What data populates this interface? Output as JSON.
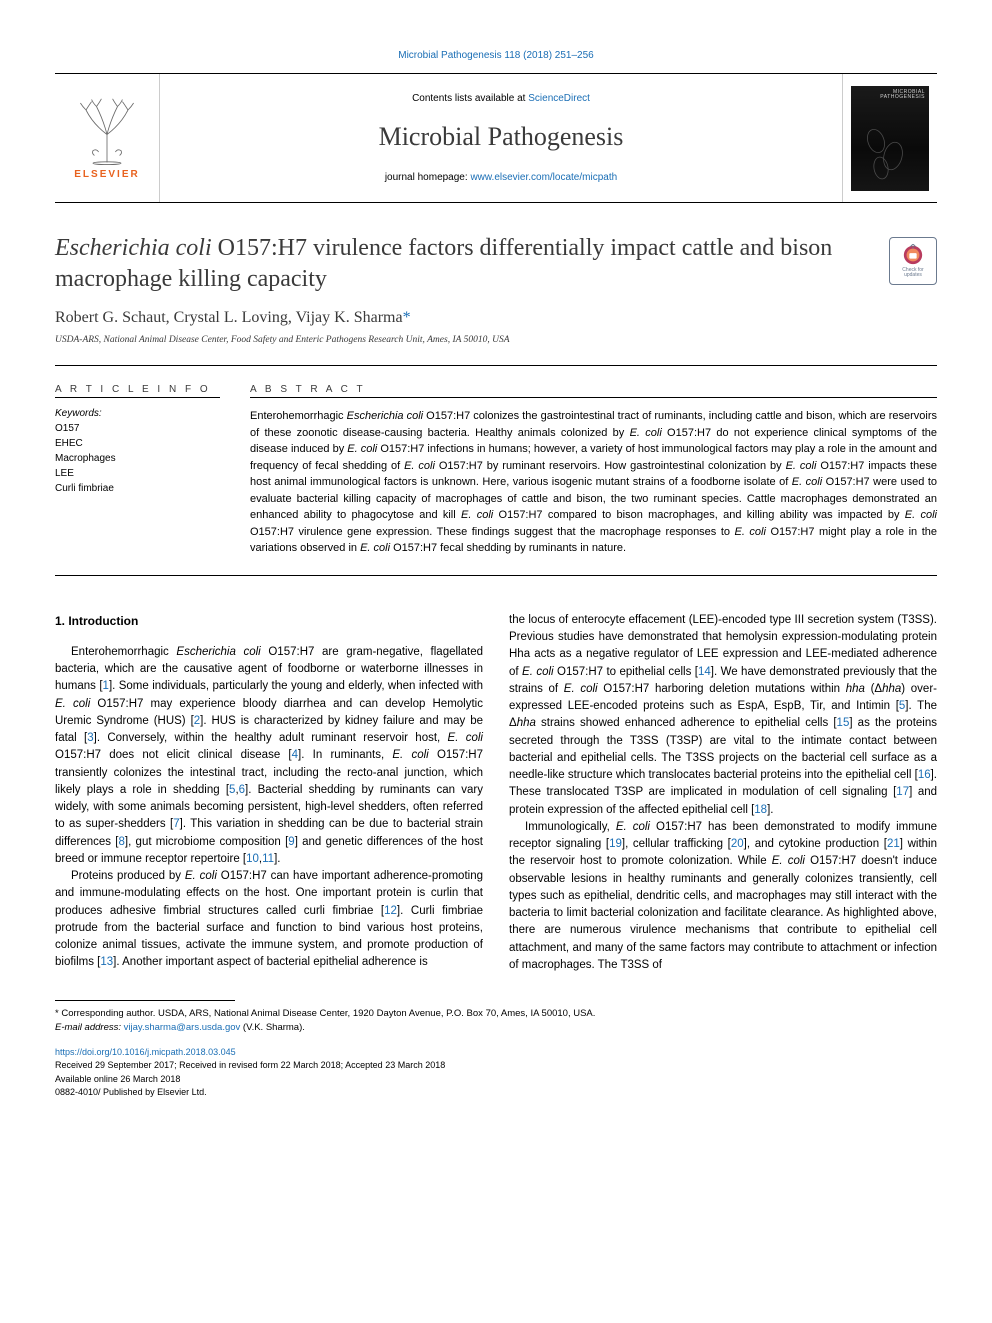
{
  "top_journal_link": "Microbial Pathogenesis 118 (2018) 251–256",
  "banner": {
    "contents_prefix": "Contents lists available at ",
    "contents_link": "ScienceDirect",
    "journal_name": "Microbial Pathogenesis",
    "homepage_prefix": "journal homepage: ",
    "homepage_url": "www.elsevier.com/locate/micpath",
    "elsevier_label": "ELSEVIER",
    "cover_title_1": "MICROBIAL",
    "cover_title_2": "PATHOGENESIS"
  },
  "colors": {
    "link": "#1a6eb5",
    "elsevier_orange": "#e8621f",
    "text_dark": "#3a3a3a",
    "badge_border": "#6b7a8f",
    "cover_bg": "#1a1a1a"
  },
  "title": {
    "pre_italic": "",
    "italic": "Escherichia coli",
    "rest": " O157:H7 virulence factors differentially impact cattle and bison macrophage killing capacity"
  },
  "updates_badge": {
    "line1": "Check for",
    "line2": "updates"
  },
  "authors": "Robert G. Schaut, Crystal L. Loving, Vijay K. Sharma",
  "corr_marker": "*",
  "affiliation": "USDA-ARS, National Animal Disease Center, Food Safety and Enteric Pathogens Research Unit, Ames, IA 50010, USA",
  "info": {
    "heading": "A R T I C L E  I N F O",
    "keywords_label": "Keywords:",
    "keywords": [
      "O157",
      "EHEC",
      "Macrophages",
      "LEE",
      "Curli fimbriae"
    ]
  },
  "abstract": {
    "heading": "A B S T R A C T",
    "text_html": "Enterohemorrhagic <span class=\"italic\">Escherichia coli</span> O157:H7 colonizes the gastrointestinal tract of ruminants, including cattle and bison, which are reservoirs of these zoonotic disease-causing bacteria. Healthy animals colonized by <span class=\"italic\">E. coli</span> O157:H7 do not experience clinical symptoms of the disease induced by <span class=\"italic\">E. coli</span> O157:H7 infections in humans; however, a variety of host immunological factors may play a role in the amount and frequency of fecal shedding of <span class=\"italic\">E. coli</span> O157:H7 by ruminant reservoirs. How gastrointestinal colonization by <span class=\"italic\">E. coli</span> O157:H7 impacts these host animal immunological factors is unknown. Here, various isogenic mutant strains of a foodborne isolate of <span class=\"italic\">E. coli</span> O157:H7 were used to evaluate bacterial killing capacity of macrophages of cattle and bison, the two ruminant species. Cattle macrophages demonstrated an enhanced ability to phagocytose and kill <span class=\"italic\">E. coli</span> O157:H7 compared to bison macrophages, and killing ability was impacted by <span class=\"italic\">E. coli</span> O157:H7 virulence gene expression. These findings suggest that the macrophage responses to <span class=\"italic\">E. coli</span> O157:H7 might play a role in the variations observed in <span class=\"italic\">E. coli</span> O157:H7 fecal shedding by ruminants in nature."
  },
  "body": {
    "intro_heading": "1. Introduction",
    "col1_p1": "Enterohemorrhagic <span class=\"italic\">Escherichia coli</span> O157:H7 are gram-negative, flagellated bacteria, which are the causative agent of foodborne or waterborne illnesses in humans [<span class=\"cite\">1</span>]. Some individuals, particularly the young and elderly, when infected with <span class=\"italic\">E. coli</span> O157:H7 may experience bloody diarrhea and can develop Hemolytic Uremic Syndrome (HUS) [<span class=\"cite\">2</span>]. HUS is characterized by kidney failure and may be fatal [<span class=\"cite\">3</span>]. Conversely, within the healthy adult ruminant reservoir host, <span class=\"italic\">E. coli</span> O157:H7 does not elicit clinical disease [<span class=\"cite\">4</span>]. In ruminants, <span class=\"italic\">E. coli</span> O157:H7 transiently colonizes the intestinal tract, including the recto-anal junction, which likely plays a role in shedding [<span class=\"cite\">5</span>,<span class=\"cite\">6</span>]. Bacterial shedding by ruminants can vary widely, with some animals becoming persistent, high-level shedders, often referred to as super-shedders [<span class=\"cite\">7</span>]. This variation in shedding can be due to bacterial strain differences [<span class=\"cite\">8</span>], gut microbiome composition [<span class=\"cite\">9</span>] and genetic differences of the host breed or immune receptor repertoire [<span class=\"cite\">10</span>,<span class=\"cite\">11</span>].",
    "col1_p2": "Proteins produced by <span class=\"italic\">E. coli</span> O157:H7 can have important adherence-promoting and immune-modulating effects on the host. One important protein is curlin that produces adhesive fimbrial structures called curli fimbriae [<span class=\"cite\">12</span>]. Curli fimbriae protrude from the bacterial surface and function to bind various host proteins, colonize animal tissues, activate the immune system, and promote production of biofilms [<span class=\"cite\">13</span>]. Another important aspect of bacterial epithelial adherence is",
    "col2_p1": "the locus of enterocyte effacement (LEE)-encoded type III secretion system (T3SS). Previous studies have demonstrated that hemolysin expression-modulating protein Hha acts as a negative regulator of LEE expression and LEE-mediated adherence of <span class=\"italic\">E. coli</span> O157:H7 to epithelial cells [<span class=\"cite\">14</span>]. We have demonstrated previously that the strains of <span class=\"italic\">E. coli</span> O157:H7 harboring deletion mutations within <span class=\"italic\">hha</span> (Δ<span class=\"italic\">hha</span>) over-expressed LEE-encoded proteins such as EspA, EspB, Tir, and Intimin [<span class=\"cite\">5</span>]. The Δ<span class=\"italic\">hha</span> strains showed enhanced adherence to epithelial cells [<span class=\"cite\">15</span>] as the proteins secreted through the T3SS (T3SP) are vital to the intimate contact between bacterial and epithelial cells. The T3SS projects on the bacterial cell surface as a needle-like structure which translocates bacterial proteins into the epithelial cell [<span class=\"cite\">16</span>]. These translocated T3SP are implicated in modulation of cell signaling [<span class=\"cite\">17</span>] and protein expression of the affected epithelial cell [<span class=\"cite\">18</span>].",
    "col2_p2": "Immunologically, <span class=\"italic\">E. coli</span> O157:H7 has been demonstrated to modify immune receptor signaling [<span class=\"cite\">19</span>], cellular trafficking [<span class=\"cite\">20</span>], and cytokine production [<span class=\"cite\">21</span>] within the reservoir host to promote colonization. While <span class=\"italic\">E. coli</span> O157:H7 doesn't induce observable lesions in healthy ruminants and generally colonizes transiently, cell types such as epithelial, dendritic cells, and macrophages may still interact with the bacteria to limit bacterial colonization and facilitate clearance. As highlighted above, there are numerous virulence mechanisms that contribute to epithelial cell attachment, and many of the same factors may contribute to attachment or infection of macrophages. The T3SS of"
  },
  "footer": {
    "corr_note": "* Corresponding author. USDA, ARS, National Animal Disease Center, 1920 Dayton Avenue, P.O. Box 70, Ames, IA 50010, USA.",
    "email_label": "E-mail address: ",
    "email": "vijay.sharma@ars.usda.gov",
    "email_suffix": " (V.K. Sharma).",
    "doi": "https://doi.org/10.1016/j.micpath.2018.03.045",
    "received": "Received 29 September 2017; Received in revised form 22 March 2018; Accepted 23 March 2018",
    "available": "Available online 26 March 2018",
    "issn": "0882-4010/ Published by Elsevier Ltd."
  }
}
